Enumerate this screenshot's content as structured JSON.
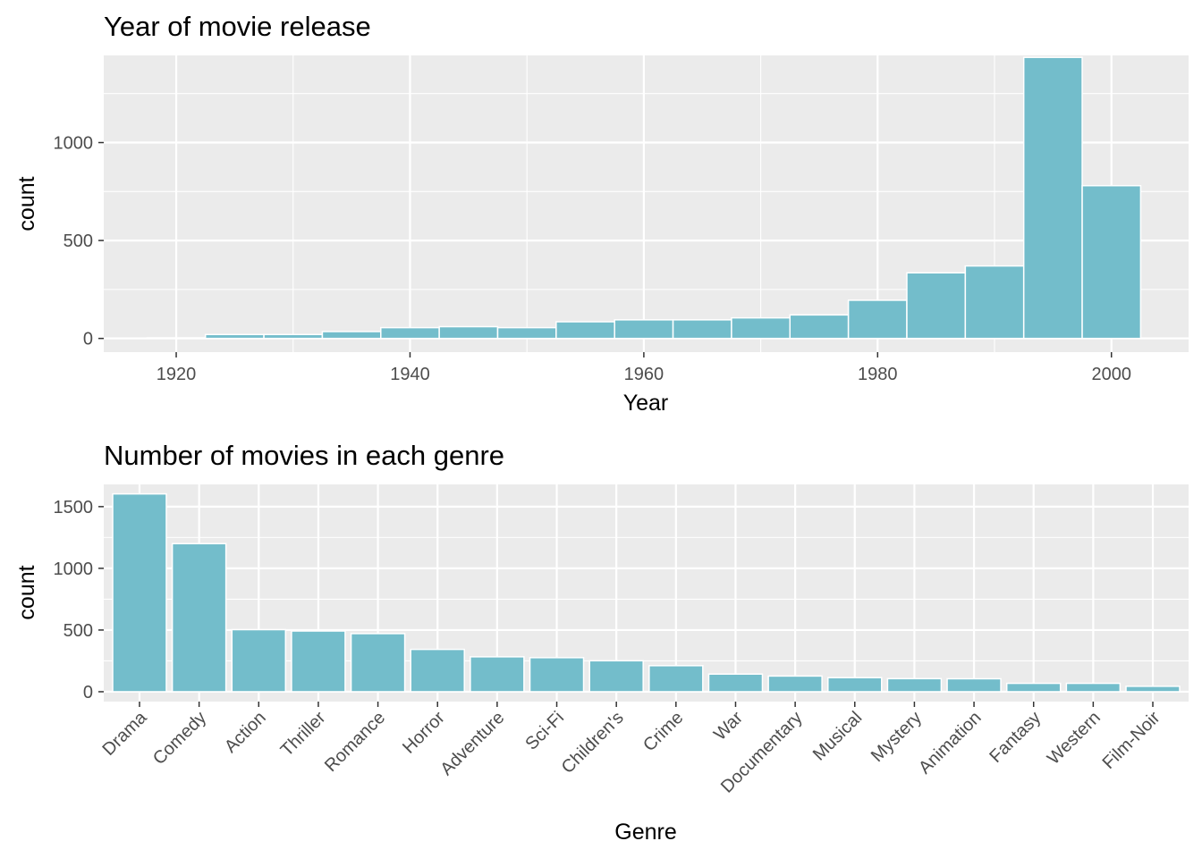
{
  "colors": {
    "bar_fill": "#73bdcb",
    "panel": "#ebebeb"
  },
  "chart_data": [
    {
      "type": "bar",
      "title": "Year of movie release",
      "xlabel": "Year",
      "ylabel": "count",
      "xlim": [
        1913.8,
        2006.6
      ],
      "ylim": [
        -70,
        1445
      ],
      "x_ticks": [
        1920,
        1940,
        1960,
        1980,
        2000
      ],
      "y_ticks": [
        0,
        500,
        1000
      ],
      "bin_width": 5,
      "x": [
        1920,
        1925,
        1930,
        1935,
        1940,
        1945,
        1950,
        1955,
        1960,
        1965,
        1970,
        1975,
        1980,
        1985,
        1990,
        1995,
        2000
      ],
      "values": [
        3,
        20,
        20,
        35,
        55,
        60,
        55,
        85,
        95,
        95,
        105,
        120,
        195,
        335,
        370,
        1435,
        780
      ],
      "grid": true
    },
    {
      "type": "bar",
      "title": "Number of movies in each genre",
      "xlabel": "Genre",
      "ylabel": "count",
      "ylim": [
        -80,
        1680
      ],
      "y_ticks": [
        0,
        500,
        1000,
        1500
      ],
      "categories": [
        "Drama",
        "Comedy",
        "Action",
        "Thriller",
        "Romance",
        "Horror",
        "Adventure",
        "Sci-Fi",
        "Children's",
        "Crime",
        "War",
        "Documentary",
        "Musical",
        "Mystery",
        "Animation",
        "Fantasy",
        "Western",
        "Film-Noir"
      ],
      "values": [
        1603,
        1200,
        503,
        492,
        471,
        343,
        283,
        276,
        251,
        211,
        143,
        127,
        114,
        106,
        105,
        68,
        68,
        44
      ],
      "grid": true
    }
  ]
}
